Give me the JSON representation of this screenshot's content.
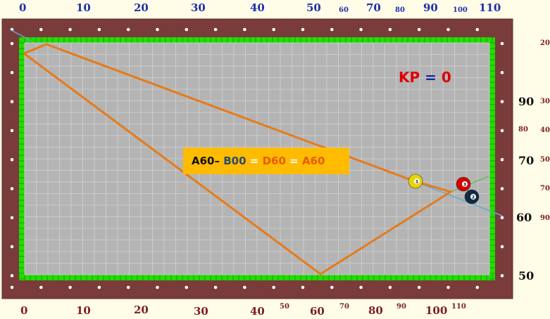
{
  "top_scale": [
    {
      "t": "0",
      "sm": false
    },
    {
      "t": "10",
      "sm": false
    },
    {
      "t": "20",
      "sm": false
    },
    {
      "t": "30",
      "sm": false
    },
    {
      "t": "40",
      "sm": false
    },
    {
      "t": "50",
      "sm": false
    },
    {
      "t": "60",
      "sm": true
    },
    {
      "t": "70",
      "sm": false
    },
    {
      "t": "80",
      "sm": true
    },
    {
      "t": "90",
      "sm": false
    },
    {
      "t": "100",
      "sm": true
    },
    {
      "t": "110",
      "sm": false
    }
  ],
  "bottom_scale": [
    {
      "t": "0",
      "sm": false
    },
    {
      "t": "10",
      "sm": false
    },
    {
      "t": "20",
      "sm": false
    },
    {
      "t": "30",
      "sm": false
    },
    {
      "t": "40",
      "sm": false
    },
    {
      "t": "50",
      "sm": true
    },
    {
      "t": "60",
      "sm": false
    },
    {
      "t": "70",
      "sm": true
    },
    {
      "t": "80",
      "sm": false
    },
    {
      "t": "90",
      "sm": true
    },
    {
      "t": "100",
      "sm": false
    },
    {
      "t": "110",
      "sm": true
    }
  ],
  "right_scale": [
    {
      "t": "20",
      "sm": true
    },
    {
      "t": "90",
      "sm": false
    },
    {
      "t": "30",
      "sm": true
    },
    {
      "t": "80",
      "sm": true
    },
    {
      "t": "40",
      "sm": true
    },
    {
      "t": "70",
      "sm": false
    },
    {
      "t": "50",
      "sm": true
    },
    {
      "t": "70",
      "sm": true
    },
    {
      "t": "60",
      "sm": false
    },
    {
      "t": "90",
      "sm": true
    },
    {
      "t": "50",
      "sm": false
    }
  ],
  "kp": {
    "label": "KP",
    "eq": "=",
    "value": "0"
  },
  "formula": {
    "a": "A60",
    "dash": "–",
    "b": "B00",
    "eq1": "=",
    "d": "D60",
    "eq2": "=",
    "e": "A60"
  },
  "balls": [
    {
      "number": "1",
      "color": "#e8d400"
    },
    {
      "number": "3",
      "color": "#d40000"
    },
    {
      "number": "2",
      "color": "#0f2a44"
    }
  ],
  "colors": {
    "rail": "#7a3b3b",
    "cushion": "#22dd00",
    "cloth": "#b4b4b4",
    "path": "#e67a1a",
    "aim": "#66aacc",
    "label_box": "#ffbb00"
  }
}
